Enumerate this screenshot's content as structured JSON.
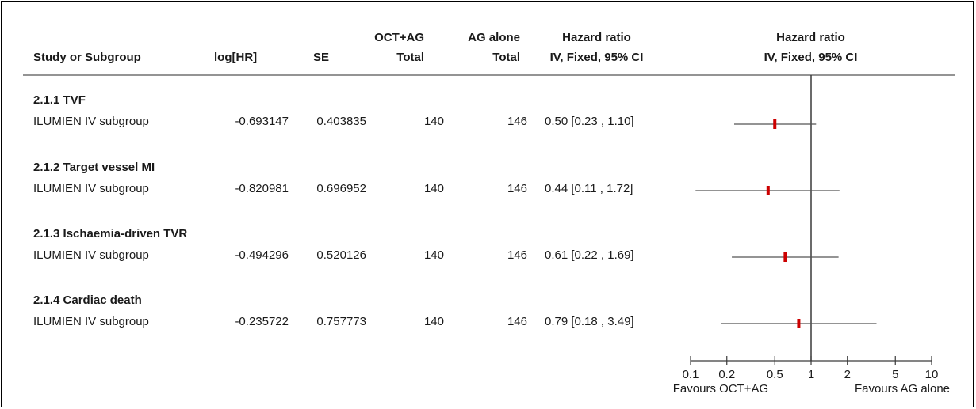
{
  "headers": {
    "study": "Study or Subgroup",
    "loghr": "log[HR]",
    "se": "SE",
    "exp_line1": "OCT+AG",
    "exp_line2": "Total",
    "ctl_line1": "AG alone",
    "ctl_line2": "Total",
    "hr_line1": "Hazard ratio",
    "hr_line2": "IV, Fixed, 95% CI",
    "plot_line1": "Hazard ratio",
    "plot_line2": "IV, Fixed, 95% CI"
  },
  "chart_data": {
    "type": "forest",
    "x_scale": "log",
    "xlim": [
      0.1,
      10
    ],
    "reference_line": 1,
    "x_ticks": [
      "0.1",
      "0.2",
      "0.5",
      "1",
      "2",
      "5",
      "10"
    ],
    "x_tick_values": [
      0.1,
      0.2,
      0.5,
      1,
      2,
      5,
      10
    ],
    "left_label": "Favours OCT+AG",
    "right_label": "Favours AG alone",
    "marker_color": "#cc0000",
    "groups": [
      {
        "title": "2.1.1 TVF",
        "study": "ILUMIEN IV subgroup",
        "loghr": "-0.693147",
        "se": "0.403835",
        "exp_total": "140",
        "ctl_total": "146",
        "ci_text": "0.50 [0.23 , 1.10]",
        "hr": 0.5,
        "lo": 0.23,
        "hi": 1.1
      },
      {
        "title": "2.1.2 Target vessel MI",
        "study": "ILUMIEN IV subgroup",
        "loghr": "-0.820981",
        "se": "0.696952",
        "exp_total": "140",
        "ctl_total": "146",
        "ci_text": "0.44 [0.11 , 1.72]",
        "hr": 0.44,
        "lo": 0.11,
        "hi": 1.72
      },
      {
        "title": "2.1.3 Ischaemia-driven TVR",
        "study": "ILUMIEN IV subgroup",
        "loghr": "-0.494296",
        "se": "0.520126",
        "exp_total": "140",
        "ctl_total": "146",
        "ci_text": "0.61 [0.22 , 1.69]",
        "hr": 0.61,
        "lo": 0.22,
        "hi": 1.69
      },
      {
        "title": "2.1.4 Cardiac death",
        "study": "ILUMIEN IV subgroup",
        "loghr": "-0.235722",
        "se": "0.757773",
        "exp_total": "140",
        "ctl_total": "146",
        "ci_text": "0.79 [0.18 , 3.49]",
        "hr": 0.79,
        "lo": 0.18,
        "hi": 3.49
      }
    ]
  }
}
